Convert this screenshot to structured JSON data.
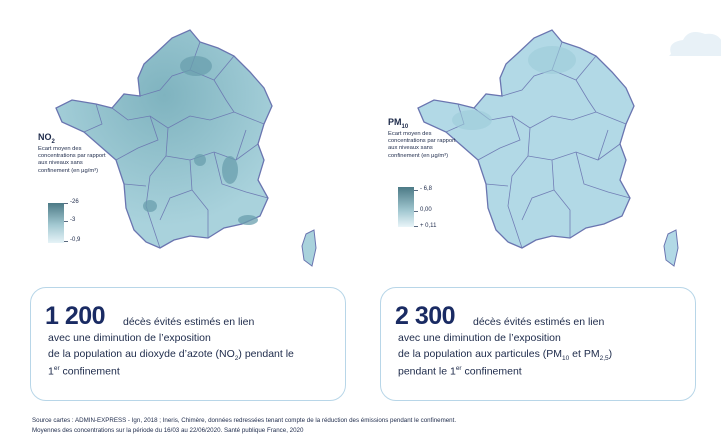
{
  "colors": {
    "map_left_fill": "#9cc7d1",
    "map_right_fill": "#b2d9e6",
    "border_line": "#6a75b0",
    "card_border": "#b8d6e8",
    "big_number": "#1a2b63",
    "text": "#1d2a4a"
  },
  "no2": {
    "legend": {
      "pollutant": "NO",
      "pollutant_sub": "2",
      "description": "Ecart moyen des concentrations par rapport aux niveaux sans confinement (en µg/m³)",
      "values": [
        "-26",
        "-3",
        "-0,9"
      ]
    },
    "card": {
      "number": "1 200",
      "line1": "décès évités estimés en lien",
      "line2": "avec une diminution de l’exposition",
      "line3_pre": "de la population au dioxyde d’azote (NO",
      "line3_sub": "2",
      "line3_post": ") pendant le",
      "line4_pre": "1",
      "line4_sup": "er",
      "line4_post": " confinement"
    }
  },
  "pm10": {
    "legend": {
      "pollutant": "PM",
      "pollutant_sub": "10",
      "description": "Ecart moyen des concentrations par rapport aux niveaux sans confinement (en µg/m³)",
      "values": [
        "- 6,8",
        "0,00",
        "+ 0,11"
      ]
    },
    "card": {
      "number": "2 300",
      "line1": "décès évités estimés en lien",
      "line2": "avec une diminution de l’exposition",
      "line3_pre": "de la population aux particules (PM",
      "line3_sub1": "10",
      "line3_mid": " et PM",
      "line3_sub2": "2,5",
      "line3_post": ")",
      "line4_pre": "pendant le 1",
      "line4_sup": "er",
      "line4_post": " confinement"
    }
  },
  "source": {
    "line1": "Source cartes  : ADMIN-EXPRESS - Ign, 2018 ; Ineris, Chimère, données redressées tenant compte de la réduction des émissions pendant le confinement.",
    "line2": "Moyennes des concentrations sur la période du 16/03 au 22/06/2020. Santé publique France, 2020"
  }
}
